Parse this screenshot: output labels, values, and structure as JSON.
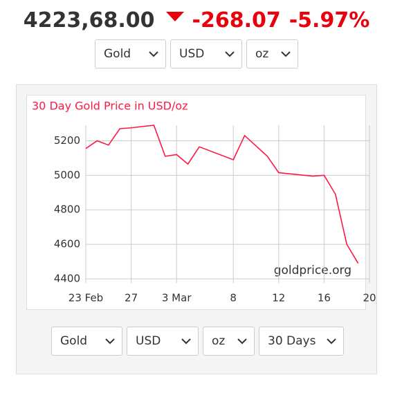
{
  "header": {
    "price": "4223,68.00",
    "change": "-268.07",
    "change_percent": "-5.97%"
  },
  "top_selects": [
    "Gold",
    "USD",
    "oz"
  ],
  "chart_data": {
    "type": "line",
    "title": "30 Day Gold Price in USD/oz",
    "watermark": "goldprice.org",
    "x": [
      "23 Feb",
      "24 Feb",
      "25 Feb",
      "26 Feb",
      "27 Feb",
      "1 Mar",
      "2 Mar",
      "3 Mar",
      "4 Mar",
      "5 Mar",
      "8 Mar",
      "9 Mar",
      "10 Mar",
      "11 Mar",
      "12 Mar",
      "15 Mar",
      "16 Mar",
      "17 Mar",
      "18 Mar",
      "19 Mar"
    ],
    "series": [
      {
        "name": "Gold",
        "color": "#ff1744",
        "values": [
          5155,
          5200,
          5175,
          5270,
          5275,
          5290,
          5110,
          5120,
          5065,
          5165,
          5090,
          5230,
          5170,
          5110,
          5015,
          4995,
          5000,
          4890,
          4600,
          4490
        ]
      }
    ],
    "xlim": [
      "23 Feb",
      "20 Mar"
    ],
    "xticks": [
      "23 Feb",
      {
        "value": "27 Feb",
        "label": "27"
      },
      "3 Mar",
      {
        "value": "8 Mar",
        "label": "8"
      },
      {
        "value": "12 Mar",
        "label": "12"
      },
      {
        "value": "16 Mar",
        "label": "16"
      },
      {
        "value": "20 Mar",
        "label": "20"
      }
    ],
    "ylim": [
      4400,
      5290
    ],
    "yticks": [
      4400,
      4600,
      4800,
      5000,
      5200
    ],
    "grid": true
  },
  "bottom_selects": [
    "Gold",
    "USD",
    "oz",
    "30 Days"
  ]
}
